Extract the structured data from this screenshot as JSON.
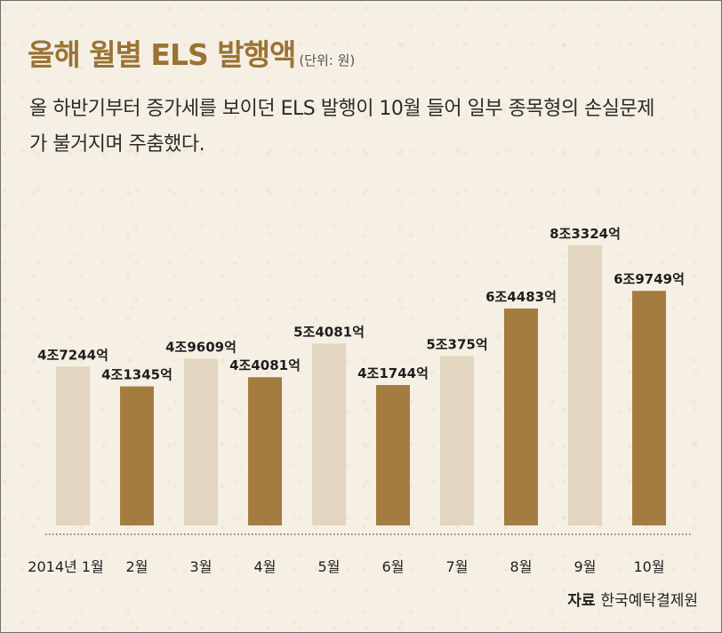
{
  "header": {
    "title": "올해 월별 ELS 발행액",
    "unit": "(단위: 원)",
    "subtitle": "올 하반기부터 증가세를 보이던 ELS 발행이 10월 들어 일부 종목형의 손실문제가 불거지며 주춤했다."
  },
  "colors": {
    "light_bar": "#e2d6c0",
    "dark_bar": "#a57c3f",
    "title": "#9a7335",
    "background": "#f6f0e4"
  },
  "chart_data": {
    "type": "bar",
    "title": "올해 월별 ELS 발행액",
    "xlabel": "",
    "ylabel": "",
    "categories": [
      "2014년 1월",
      "2월",
      "3월",
      "4월",
      "5월",
      "6월",
      "7월",
      "8월",
      "9월",
      "10월"
    ],
    "values": [
      4.7244,
      4.1345,
      4.9609,
      4.4081,
      5.4081,
      4.1744,
      5.0375,
      6.4483,
      8.3324,
      6.9749
    ],
    "data_labels": [
      "4조7244억",
      "4조1345억",
      "4조9609억",
      "4조4081억",
      "5조4081억",
      "4조1744억",
      "5조375억",
      "6조4483억",
      "8조3324억",
      "6조9749억"
    ],
    "value_unit": "조원",
    "ylim": [
      0,
      9
    ],
    "grid": false,
    "legend": "none"
  },
  "footer": {
    "source_label": "자료",
    "source_name": "한국예탁결제원"
  }
}
